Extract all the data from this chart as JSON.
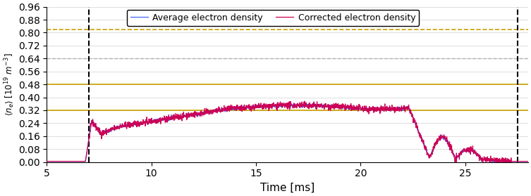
{
  "xlim": [
    5,
    28
  ],
  "ylim": [
    0.0,
    0.96
  ],
  "yticks": [
    0.0,
    0.08,
    0.16,
    0.24,
    0.32,
    0.4,
    0.48,
    0.56,
    0.64,
    0.72,
    0.8,
    0.88,
    0.96
  ],
  "xticks": [
    5,
    10,
    15,
    20,
    25
  ],
  "xlabel": "Time [ms]",
  "vlines": [
    7.0,
    27.5
  ],
  "hlines_solid_yellow": [
    0.32,
    0.48
  ],
  "hlines_dashed_yellow": [
    0.82
  ],
  "hlines_dashed_gray": [
    0.64
  ],
  "hline_yellow_color": "#c8a000",
  "hline_gray_color": "#b0b0b0",
  "vline_color": "black",
  "legend_labels": [
    "Average electron density",
    "Corrected electron density"
  ],
  "line_color_avg": "#4466ff",
  "line_color_corr": "#cc0055",
  "figsize": [
    7.53,
    2.79
  ],
  "dpi": 100
}
